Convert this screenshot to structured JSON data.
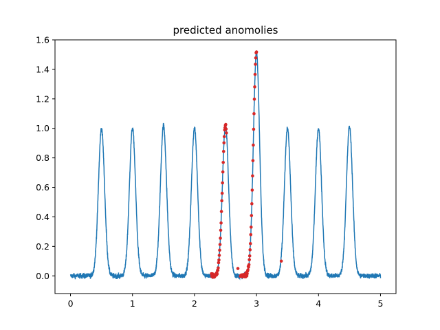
{
  "chart_data": {
    "type": "line",
    "title": "predicted anomolies",
    "xlabel": "",
    "ylabel": "",
    "xlim": [
      -0.25,
      5.25
    ],
    "ylim": [
      -0.12,
      1.6
    ],
    "xticks": [
      0,
      1,
      2,
      3,
      4,
      5
    ],
    "yticks": [
      0.0,
      0.2,
      0.4,
      0.6,
      0.8,
      1.0,
      1.2,
      1.4,
      1.6
    ],
    "xtick_labels": [
      "0",
      "1",
      "2",
      "3",
      "4",
      "5"
    ],
    "ytick_labels": [
      "0.0",
      "0.2",
      "0.4",
      "0.6",
      "0.8",
      "1.0",
      "1.2",
      "1.4",
      "1.6"
    ],
    "grid": false,
    "series": [
      {
        "kind": "line",
        "color": "#1f77b4",
        "x_range": [
          0,
          5
        ],
        "peaks": [
          {
            "x": 0.5,
            "y": 1.0
          },
          {
            "x": 1.0,
            "y": 1.0
          },
          {
            "x": 1.5,
            "y": 1.02
          },
          {
            "x": 2.0,
            "y": 1.0
          },
          {
            "x": 2.5,
            "y": 1.02
          },
          {
            "x": 3.0,
            "y": 1.52
          },
          {
            "x": 3.5,
            "y": 1.0
          },
          {
            "x": 4.0,
            "y": 1.0
          },
          {
            "x": 4.5,
            "y": 1.01
          }
        ],
        "peak_width": 0.05,
        "baseline": 0.0,
        "noise": 0.015
      },
      {
        "kind": "scatter",
        "color": "#d62728",
        "segments": [
          [
            2.27,
            2.52
          ],
          [
            2.74,
            3.0
          ]
        ],
        "extra_points": [
          [
            3.4,
            0.1
          ],
          [
            2.7,
            0.05
          ]
        ]
      }
    ]
  }
}
